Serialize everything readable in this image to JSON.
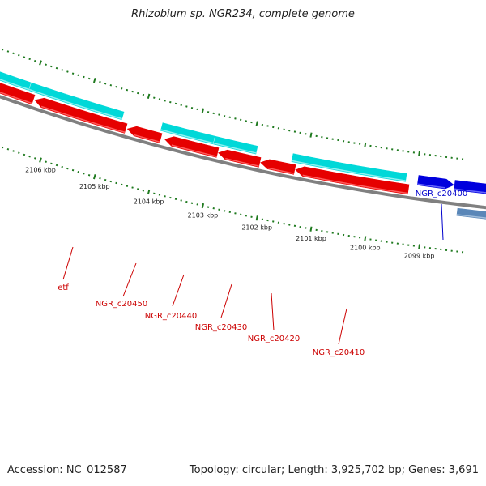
{
  "title": "Rhizobium sp. NGR234, complete genome",
  "footer": {
    "accession": "Accession: NC_012587",
    "topology": "Topology: circular; Length: 3,925,702 bp; Genes: 3,691"
  },
  "colors": {
    "backbone": "#808080",
    "tick": "#1f7a1f",
    "cds_forward": "#e60000",
    "cds_forward_hi": "#ff6666",
    "cds_reverse": "#00d8d8",
    "cds_reverse_hi": "#9ff4f4",
    "rna_forward": "#0000dd",
    "rna_reverse": "#5a87b8",
    "label_red": "#cc0000",
    "label_blue": "#0000cc"
  },
  "ruler": [
    {
      "kbp": 2106,
      "label": "2106 kbp"
    },
    {
      "kbp": 2105,
      "label": "2105 kbp"
    },
    {
      "kbp": 2104,
      "label": "2104 kbp"
    },
    {
      "kbp": 2103,
      "label": "2103 kbp"
    },
    {
      "kbp": 2102,
      "label": "2102 kbp"
    },
    {
      "kbp": 2101,
      "label": "2101 kbp"
    },
    {
      "kbp": 2100,
      "label": "2100 kbp"
    },
    {
      "kbp": 2099,
      "label": "2099 kbp"
    }
  ],
  "genes": [
    {
      "name": "etf",
      "label": "etf"
    },
    {
      "name": "NGR_c20450",
      "label": "NGR_c20450"
    },
    {
      "name": "NGR_c20440",
      "label": "NGR_c20440"
    },
    {
      "name": "NGR_c20430",
      "label": "NGR_c20430"
    },
    {
      "name": "NGR_c20420",
      "label": "NGR_c20420"
    },
    {
      "name": "NGR_c20410",
      "label": "NGR_c20410"
    },
    {
      "name": "NGR_c20400",
      "label": "NGR_c20400"
    }
  ]
}
